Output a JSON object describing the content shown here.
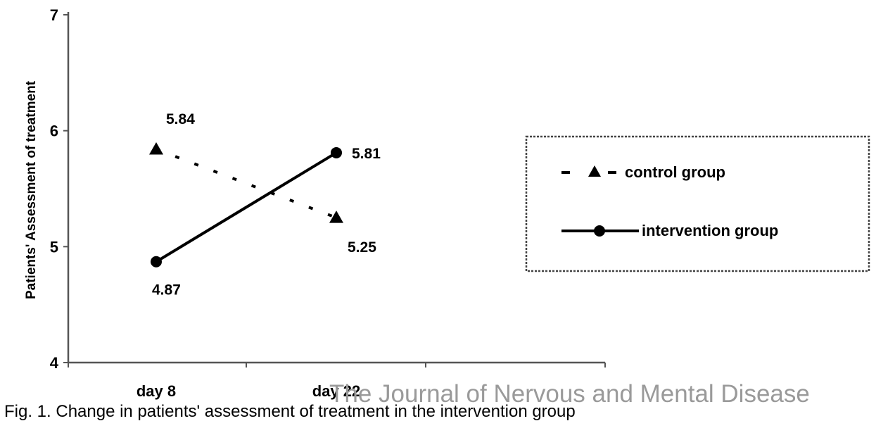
{
  "chart_data": {
    "type": "line",
    "categories": [
      "day 8",
      "day 22"
    ],
    "series": [
      {
        "name": "control group",
        "values": [
          5.84,
          5.25
        ],
        "style": "dashed",
        "marker": "triangle"
      },
      {
        "name": "intervention group",
        "values": [
          4.87,
          5.81
        ],
        "style": "solid",
        "marker": "circle"
      }
    ],
    "data_labels": {
      "control group": [
        "5.84",
        "5.25"
      ],
      "intervention group": [
        "4.87",
        "5.81"
      ]
    },
    "ylabel": "Patients' Assessment of treatment",
    "yticks": [
      "4",
      "5",
      "6",
      "7"
    ],
    "ylim": [
      4,
      7
    ],
    "legend_position": "right",
    "grid": false
  },
  "colors": {
    "line": "#000000",
    "axis": "#555555",
    "watermark": "#9a9a9a"
  },
  "watermark": "The Journal of Nervous and Mental Disease",
  "caption": "Fig. 1. Change in patients' assessment of treatment in the intervention group"
}
